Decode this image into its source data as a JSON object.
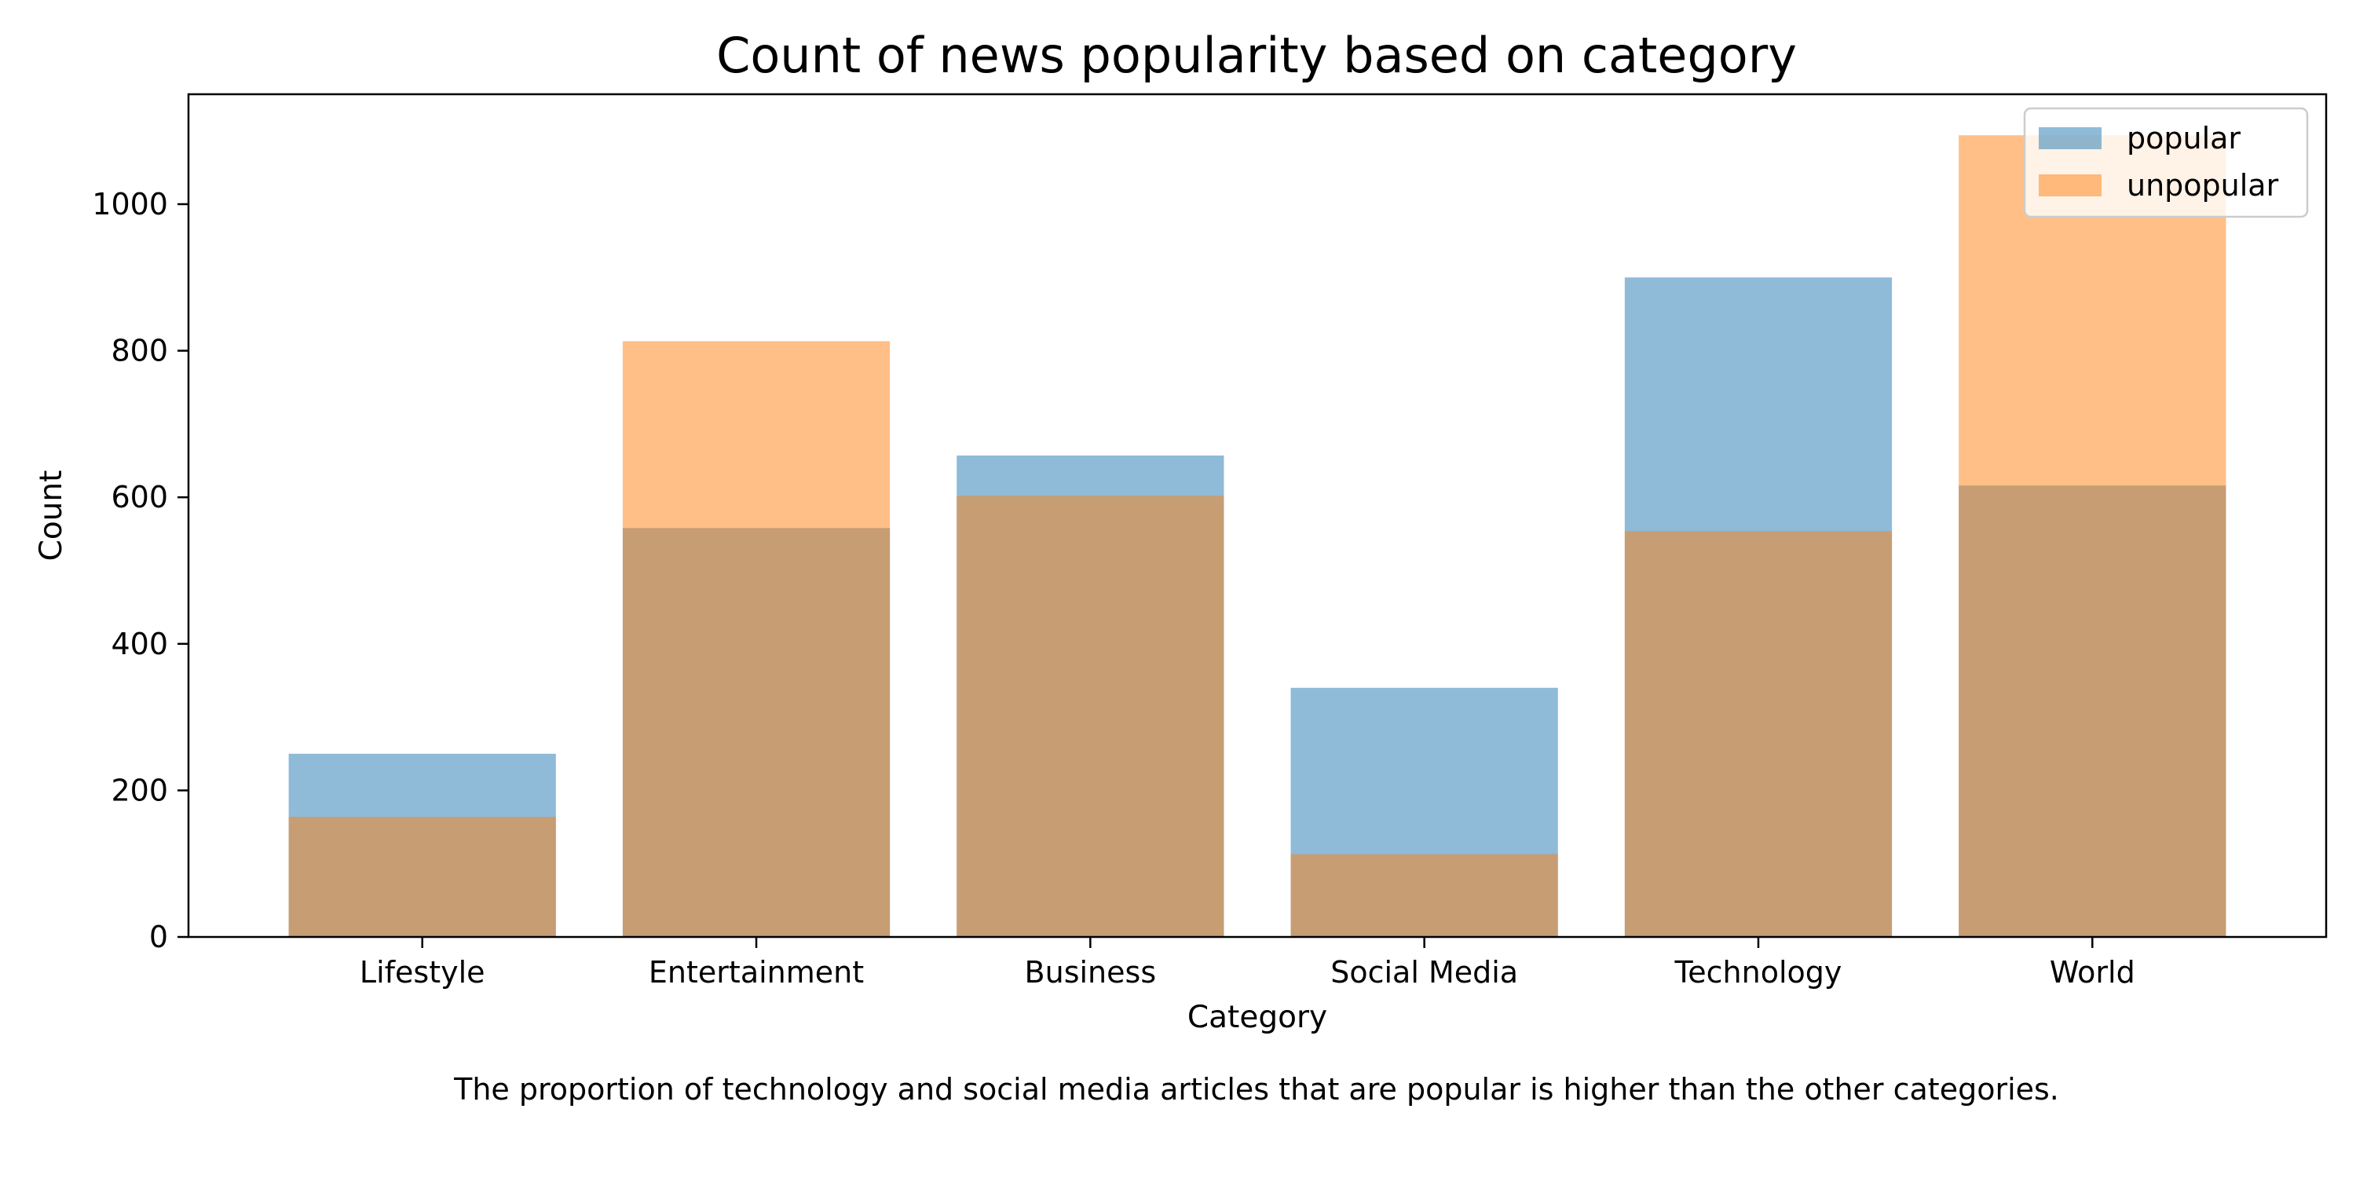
{
  "chart_data": {
    "type": "bar",
    "title": "Count of news popularity based on category",
    "xlabel": "Category",
    "ylabel": "Count",
    "caption": "The proportion of technology and social media articles that are popular is higher than the other categories.",
    "categories": [
      "Lifestyle",
      "Entertainment",
      "Business",
      "Social Media",
      "Technology",
      "World"
    ],
    "series": [
      {
        "name": "popular",
        "color": "#1f77b4",
        "values": [
          250,
          558,
          657,
          340,
          900,
          616
        ]
      },
      {
        "name": "unpopular",
        "color": "#ff7f0e",
        "values": [
          164,
          813,
          602,
          113,
          554,
          1094
        ]
      }
    ],
    "bar_opacity": 0.5,
    "overlay": true,
    "ylim": [
      0,
      1150
    ],
    "yticks": [
      0,
      200,
      400,
      600,
      800,
      1000
    ],
    "grid": false,
    "legend_position": "top-right"
  }
}
